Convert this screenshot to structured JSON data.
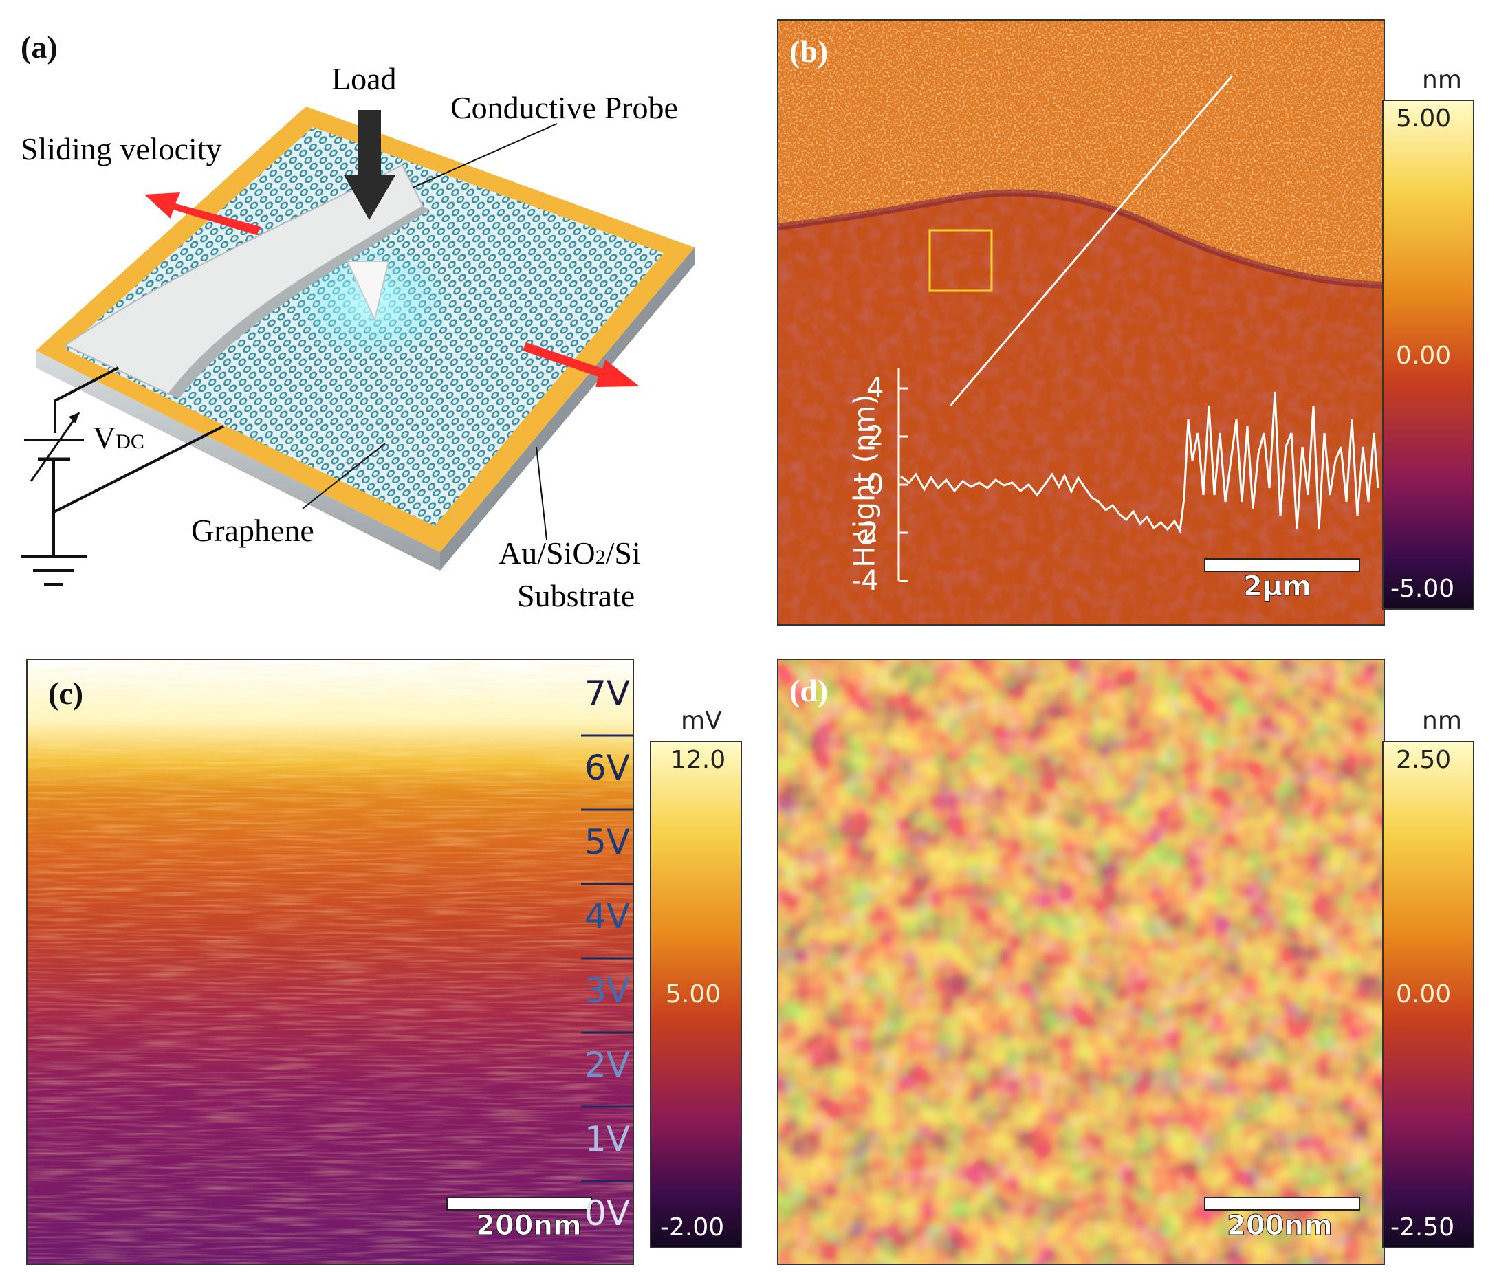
{
  "panel_a": {
    "label": "(a)",
    "load": "Load",
    "probe": "Conductive Probe",
    "velocity": "Sliding velocity",
    "vdc_main": "V",
    "vdc_sub": "DC",
    "graphene": "Graphene",
    "substrate_line1": "Au/SiO",
    "substrate_sub": "2",
    "substrate_line1b": "/Si",
    "substrate_line2": "Substrate"
  },
  "panel_b": {
    "label": "(b)",
    "scalebar": "2μm",
    "colorbar": {
      "unit": "nm",
      "max": "5.00",
      "mid": "0.00",
      "min": "-5.00"
    },
    "inset": {
      "ylabel": "Height (nm)",
      "ticks": [
        "4",
        "2",
        "0",
        "-2",
        "-4"
      ]
    }
  },
  "panel_c": {
    "label": "(c)",
    "scalebar": "200nm",
    "voltages": [
      "7V",
      "6V",
      "5V",
      "4V",
      "3V",
      "2V",
      "1V",
      "0V"
    ],
    "colorbar": {
      "unit": "mV",
      "max": "12.0",
      "mid": "5.00",
      "min": "-2.00"
    }
  },
  "panel_d": {
    "label": "(d)",
    "scalebar": "200nm",
    "colorbar": {
      "unit": "nm",
      "max": "2.50",
      "mid": "0.00",
      "min": "-2.50"
    }
  },
  "colors": {
    "afm_low": "#1a0a2e",
    "afm_mid": "#c8401e",
    "afm_high": "#f5f0a0",
    "arrow": "#ff2a2a",
    "substrate": "#f5b73b",
    "graphene_lattice": "#2a8ca8"
  }
}
